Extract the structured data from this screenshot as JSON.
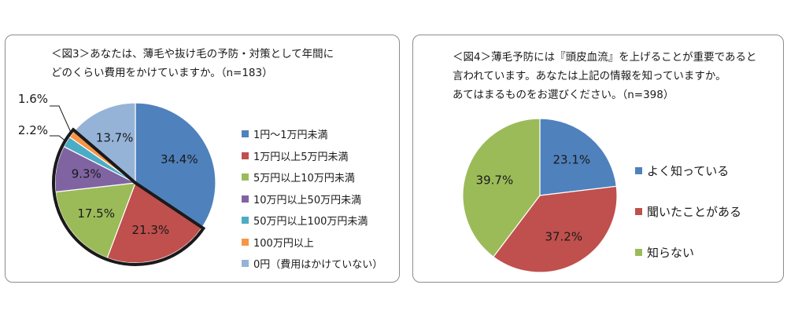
{
  "chart_data": [
    {
      "type": "pie",
      "title": "＜図3＞あなたは、薄毛や抜け毛の予防・対策として年間に\nどのくらい費用をかけていますか。（n=183）",
      "slices": [
        {
          "name": "1円～1万円未満",
          "value": 34.4,
          "label": "34.4%",
          "color": "#4f81bd"
        },
        {
          "name": "1万円以上5万円未満",
          "value": 21.3,
          "label": "21.3%",
          "color": "#c0504d"
        },
        {
          "name": "5万円以上10万円未満",
          "value": 17.5,
          "label": "17.5%",
          "color": "#9bbb59"
        },
        {
          "name": "10万円以上50万円未満",
          "value": 9.3,
          "label": "9.3%",
          "color": "#8064a2"
        },
        {
          "name": "50万円以上100万円未満",
          "value": 2.2,
          "label": "2.2%",
          "color": "#4bacc6"
        },
        {
          "name": "100万円以上",
          "value": 1.6,
          "label": "1.6%",
          "color": "#f79646"
        },
        {
          "name": "0円（費用はかけていない）",
          "value": 13.7,
          "label": "13.7%",
          "color": "#95b3d7"
        }
      ],
      "highlighted_slices": [
        "1万円以上5万円未満",
        "5万円以上10万円未満",
        "10万円以上50万円未満",
        "50万円以上100万円未満",
        "100万円以上"
      ],
      "legend_position": "right"
    },
    {
      "type": "pie",
      "title": "＜図4＞薄毛予防には『頭皮血流』を上げることが重要であると\n言われています。あなたは上記の情報を知っていますか。\nあてはまるものをお選びください。（n=398）",
      "slices": [
        {
          "name": "よく知っている",
          "value": 23.1,
          "label": "23.1%",
          "color": "#4f81bd"
        },
        {
          "name": "聞いたことがある",
          "value": 37.2,
          "label": "37.2%",
          "color": "#c0504d"
        },
        {
          "name": "知らない",
          "value": 39.7,
          "label": "39.7%",
          "color": "#9bbb59"
        }
      ],
      "legend_position": "right"
    }
  ]
}
